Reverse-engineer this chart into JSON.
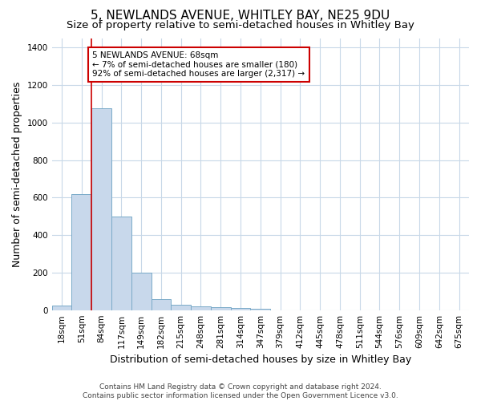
{
  "title": "5, NEWLANDS AVENUE, WHITLEY BAY, NE25 9DU",
  "subtitle": "Size of property relative to semi-detached houses in Whitley Bay",
  "xlabel": "Distribution of semi-detached houses by size in Whitley Bay",
  "ylabel": "Number of semi-detached properties",
  "categories": [
    "18sqm",
    "51sqm",
    "84sqm",
    "117sqm",
    "149sqm",
    "182sqm",
    "215sqm",
    "248sqm",
    "281sqm",
    "314sqm",
    "347sqm",
    "379sqm",
    "412sqm",
    "445sqm",
    "478sqm",
    "511sqm",
    "544sqm",
    "576sqm",
    "609sqm",
    "642sqm",
    "675sqm"
  ],
  "values": [
    25,
    620,
    1075,
    500,
    200,
    60,
    30,
    18,
    15,
    10,
    8,
    0,
    0,
    0,
    0,
    0,
    0,
    0,
    0,
    0,
    0
  ],
  "bar_color": "#c8d8eb",
  "bar_edge_color": "#7aaac8",
  "vline_x": 1.5,
  "vline_color": "#cc0000",
  "annotation_text": "5 NEWLANDS AVENUE: 68sqm\n← 7% of semi-detached houses are smaller (180)\n92% of semi-detached houses are larger (2,317) →",
  "annotation_box_color": "#ffffff",
  "annotation_box_edge": "#cc0000",
  "ylim": [
    0,
    1450
  ],
  "yticks": [
    0,
    200,
    400,
    600,
    800,
    1000,
    1200,
    1400
  ],
  "footer": "Contains HM Land Registry data © Crown copyright and database right 2024.\nContains public sector information licensed under the Open Government Licence v3.0.",
  "bg_color": "#ffffff",
  "grid_color": "#c8d8e8",
  "title_fontsize": 11,
  "subtitle_fontsize": 9.5,
  "label_fontsize": 9,
  "tick_fontsize": 7.5,
  "footer_fontsize": 6.5
}
